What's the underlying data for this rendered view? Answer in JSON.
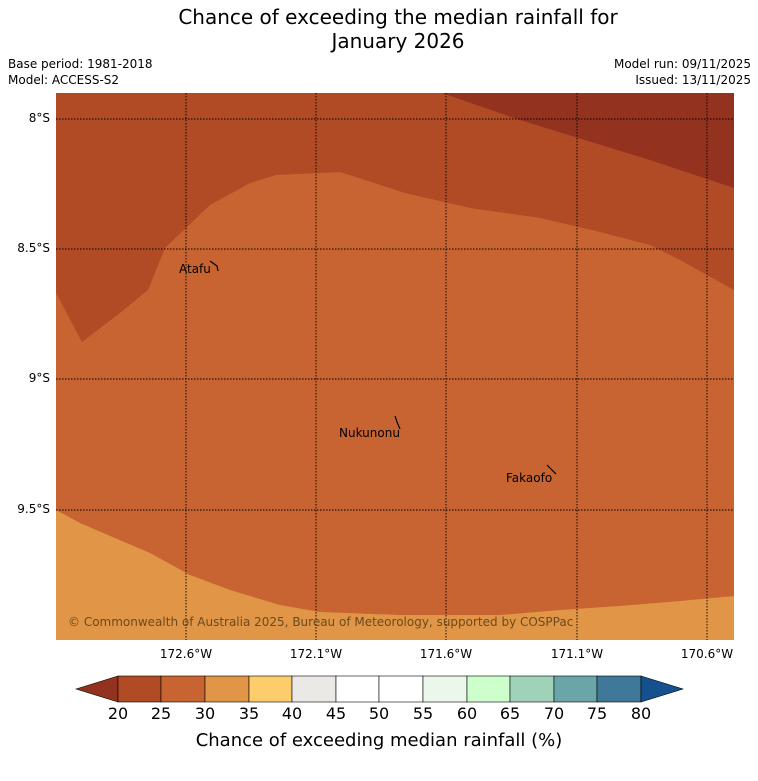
{
  "title_line1": "Chance of exceeding the median rainfall for",
  "title_line2": "January 2026",
  "meta": {
    "base_period": "Base period: 1981-2018",
    "model": "Model: ACCESS-S2",
    "model_run": "Model run: 09/11/2025",
    "issued": "Issued: 13/11/2025"
  },
  "map": {
    "lat_labels": [
      "8°S",
      "8.5°S",
      "9°S",
      "9.5°S"
    ],
    "lon_labels": [
      "172.6°W",
      "172.1°W",
      "171.6°W",
      "171.1°W",
      "170.6°W"
    ],
    "places": [
      {
        "name": "Atafu"
      },
      {
        "name": "Nukunonu"
      },
      {
        "name": "Fakaofo"
      }
    ],
    "copyright": "© Commonwealth of Australia 2025, Bureau of Meteorology, supported by COSPPac",
    "colors": {
      "lt20": "#93321e",
      "c20_25": "#b04b26",
      "c25_30": "#c86432",
      "c30_35": "#e09646",
      "c35_40": "#fdcd6b",
      "c40_45": "#ebe9e5",
      "c45_55": "#ffffff",
      "c55_60": "#eaf7ea",
      "c60_65": "#ccffcc",
      "c65_70": "#a0d2b9",
      "c70_75": "#6aa6a8",
      "c75_80": "#3f7898",
      "gt80": "#15508f"
    }
  },
  "colorbar": {
    "ticks": [
      "20",
      "25",
      "30",
      "35",
      "40",
      "45",
      "50",
      "55",
      "60",
      "65",
      "70",
      "75",
      "80"
    ],
    "label": "Chance of exceeding median rainfall (%)"
  }
}
